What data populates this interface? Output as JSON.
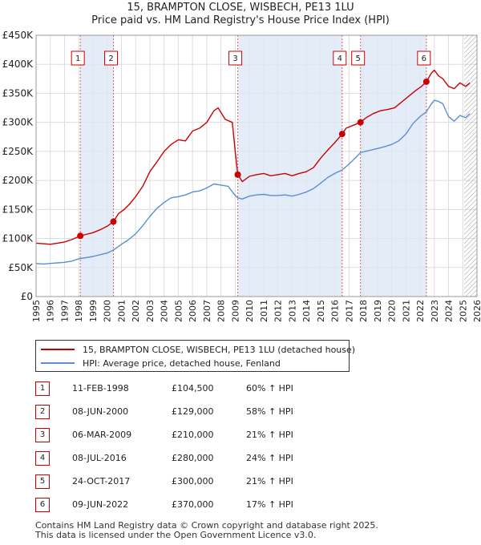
{
  "title_line1": "15, BRAMPTON CLOSE, WISBECH, PE13 1LU",
  "title_line2": "Price paid vs. HM Land Registry's House Price Index (HPI)",
  "legend": {
    "property_label": "15, BRAMPTON CLOSE, WISBECH, PE13 1LU (detached house)",
    "hpi_label": "HPI: Average price, detached house, Fenland",
    "property_color": "#cc0000",
    "hpi_color": "#5b8fd0"
  },
  "sales": [
    {
      "num": "1",
      "date": "11-FEB-1998",
      "price": "£104,500",
      "hpi": "60% ↑ HPI"
    },
    {
      "num": "2",
      "date": "08-JUN-2000",
      "price": "£129,000",
      "hpi": "58% ↑ HPI"
    },
    {
      "num": "3",
      "date": "06-MAR-2009",
      "price": "£210,000",
      "hpi": "21% ↑ HPI"
    },
    {
      "num": "4",
      "date": "08-JUL-2016",
      "price": "£280,000",
      "hpi": "24% ↑ HPI"
    },
    {
      "num": "5",
      "date": "24-OCT-2017",
      "price": "£300,000",
      "hpi": "21% ↑ HPI"
    },
    {
      "num": "6",
      "date": "09-JUN-2022",
      "price": "£370,000",
      "hpi": "17% ↑ HPI"
    }
  ],
  "footer_line1": "Contains HM Land Registry data © Crown copyright and database right 2025.",
  "footer_line2": "This data is licensed under the Open Government Licence v3.0.",
  "chart_data": {
    "type": "line",
    "xlim": [
      1995,
      2026
    ],
    "ylim": [
      0,
      450000
    ],
    "y_ticks": [
      0,
      50000,
      100000,
      150000,
      200000,
      250000,
      300000,
      350000,
      400000,
      450000
    ],
    "y_tick_labels": [
      "£0",
      "£50K",
      "£100K",
      "£150K",
      "£200K",
      "£250K",
      "£300K",
      "£350K",
      "£400K",
      "£450K"
    ],
    "x_ticks": [
      1995,
      1996,
      1997,
      1998,
      1999,
      2000,
      2001,
      2002,
      2003,
      2004,
      2005,
      2006,
      2007,
      2008,
      2009,
      2010,
      2011,
      2012,
      2013,
      2014,
      2015,
      2016,
      2017,
      2018,
      2019,
      2020,
      2021,
      2022,
      2023,
      2024,
      2025,
      2026
    ],
    "x_tick_labels": [
      "1995",
      "1996",
      "1997",
      "1998",
      "1999",
      "2000",
      "2001",
      "2002",
      "2003",
      "2004",
      "2005",
      "2006",
      "2007",
      "2008",
      "2009",
      "2010",
      "2011",
      "2012",
      "2013",
      "2014",
      "2015",
      "2016",
      "2017",
      "2018",
      "2019",
      "2020",
      "2021",
      "2022",
      "2023",
      "2024",
      "2025",
      "2026"
    ],
    "shaded_periods": [
      [
        1998.11,
        2000.44
      ],
      [
        2009.18,
        2016.52
      ],
      [
        2017.81,
        2022.44
      ]
    ],
    "future_hatch_start": 2025.1,
    "series": [
      {
        "name": "15, BRAMPTON CLOSE, WISBECH, PE13 1LU (detached house)",
        "color": "#cc0000",
        "points": [
          [
            1995.0,
            92000
          ],
          [
            1995.5,
            91000
          ],
          [
            1996.0,
            90000
          ],
          [
            1996.5,
            92000
          ],
          [
            1997.0,
            94000
          ],
          [
            1997.5,
            98000
          ],
          [
            1998.11,
            104500
          ],
          [
            1998.5,
            107000
          ],
          [
            1999.0,
            110000
          ],
          [
            1999.5,
            115000
          ],
          [
            2000.0,
            121000
          ],
          [
            2000.44,
            129000
          ],
          [
            2000.8,
            143000
          ],
          [
            2001.2,
            150000
          ],
          [
            2001.6,
            160000
          ],
          [
            2002.0,
            172000
          ],
          [
            2002.5,
            190000
          ],
          [
            2003.0,
            215000
          ],
          [
            2003.5,
            232000
          ],
          [
            2004.0,
            250000
          ],
          [
            2004.5,
            262000
          ],
          [
            2005.0,
            270000
          ],
          [
            2005.5,
            268000
          ],
          [
            2006.0,
            285000
          ],
          [
            2006.5,
            290000
          ],
          [
            2007.0,
            300000
          ],
          [
            2007.5,
            320000
          ],
          [
            2007.8,
            325000
          ],
          [
            2008.3,
            305000
          ],
          [
            2008.8,
            300000
          ],
          [
            2009.0,
            250000
          ],
          [
            2009.18,
            210000
          ],
          [
            2009.5,
            198000
          ],
          [
            2010.0,
            207000
          ],
          [
            2010.5,
            210000
          ],
          [
            2011.0,
            212000
          ],
          [
            2011.5,
            208000
          ],
          [
            2012.0,
            210000
          ],
          [
            2012.5,
            212000
          ],
          [
            2013.0,
            208000
          ],
          [
            2013.5,
            212000
          ],
          [
            2014.0,
            215000
          ],
          [
            2014.5,
            222000
          ],
          [
            2015.0,
            238000
          ],
          [
            2015.5,
            252000
          ],
          [
            2016.0,
            265000
          ],
          [
            2016.52,
            280000
          ],
          [
            2016.8,
            290000
          ],
          [
            2017.3,
            295000
          ],
          [
            2017.81,
            300000
          ],
          [
            2018.2,
            308000
          ],
          [
            2018.7,
            315000
          ],
          [
            2019.2,
            320000
          ],
          [
            2019.7,
            322000
          ],
          [
            2020.2,
            325000
          ],
          [
            2020.7,
            335000
          ],
          [
            2021.2,
            345000
          ],
          [
            2021.7,
            355000
          ],
          [
            2022.1,
            362000
          ],
          [
            2022.44,
            370000
          ],
          [
            2022.8,
            385000
          ],
          [
            2023.0,
            390000
          ],
          [
            2023.3,
            380000
          ],
          [
            2023.6,
            375000
          ],
          [
            2024.0,
            362000
          ],
          [
            2024.4,
            358000
          ],
          [
            2024.8,
            368000
          ],
          [
            2025.2,
            362000
          ],
          [
            2025.5,
            368000
          ]
        ]
      },
      {
        "name": "HPI: Average price, detached house, Fenland",
        "color": "#5b8fd0",
        "points": [
          [
            1995.0,
            57000
          ],
          [
            1995.5,
            56000
          ],
          [
            1996.0,
            57000
          ],
          [
            1996.5,
            58000
          ],
          [
            1997.0,
            59000
          ],
          [
            1997.5,
            61000
          ],
          [
            1998.0,
            65000
          ],
          [
            1998.5,
            67000
          ],
          [
            1999.0,
            69000
          ],
          [
            1999.5,
            72000
          ],
          [
            2000.0,
            75000
          ],
          [
            2000.44,
            80000
          ],
          [
            2001.0,
            90000
          ],
          [
            2001.5,
            98000
          ],
          [
            2002.0,
            108000
          ],
          [
            2002.5,
            122000
          ],
          [
            2003.0,
            138000
          ],
          [
            2003.5,
            152000
          ],
          [
            2004.0,
            162000
          ],
          [
            2004.5,
            170000
          ],
          [
            2005.0,
            172000
          ],
          [
            2005.5,
            175000
          ],
          [
            2006.0,
            180000
          ],
          [
            2006.5,
            182000
          ],
          [
            2007.0,
            187000
          ],
          [
            2007.5,
            194000
          ],
          [
            2008.0,
            192000
          ],
          [
            2008.5,
            190000
          ],
          [
            2009.0,
            174000
          ],
          [
            2009.18,
            170000
          ],
          [
            2009.5,
            168000
          ],
          [
            2010.0,
            173000
          ],
          [
            2010.5,
            175000
          ],
          [
            2011.0,
            176000
          ],
          [
            2011.5,
            174000
          ],
          [
            2012.0,
            174000
          ],
          [
            2012.5,
            175000
          ],
          [
            2013.0,
            173000
          ],
          [
            2013.5,
            176000
          ],
          [
            2014.0,
            180000
          ],
          [
            2014.5,
            186000
          ],
          [
            2015.0,
            195000
          ],
          [
            2015.5,
            205000
          ],
          [
            2016.0,
            212000
          ],
          [
            2016.52,
            218000
          ],
          [
            2017.0,
            228000
          ],
          [
            2017.5,
            240000
          ],
          [
            2017.81,
            248000
          ],
          [
            2018.5,
            252000
          ],
          [
            2019.0,
            255000
          ],
          [
            2019.5,
            258000
          ],
          [
            2020.0,
            262000
          ],
          [
            2020.5,
            268000
          ],
          [
            2021.0,
            280000
          ],
          [
            2021.5,
            298000
          ],
          [
            2022.0,
            310000
          ],
          [
            2022.44,
            318000
          ],
          [
            2022.8,
            332000
          ],
          [
            2023.0,
            338000
          ],
          [
            2023.3,
            336000
          ],
          [
            2023.6,
            332000
          ],
          [
            2024.0,
            310000
          ],
          [
            2024.4,
            302000
          ],
          [
            2024.8,
            312000
          ],
          [
            2025.2,
            308000
          ],
          [
            2025.5,
            315000
          ]
        ]
      }
    ],
    "markers": [
      {
        "label": "1",
        "x": 1998.11,
        "y": 104500
      },
      {
        "label": "2",
        "x": 2000.44,
        "y": 129000
      },
      {
        "label": "3",
        "x": 2009.18,
        "y": 210000
      },
      {
        "label": "4",
        "x": 2016.52,
        "y": 280000
      },
      {
        "label": "5",
        "x": 2017.81,
        "y": 300000
      },
      {
        "label": "6",
        "x": 2022.44,
        "y": 370000
      }
    ]
  }
}
